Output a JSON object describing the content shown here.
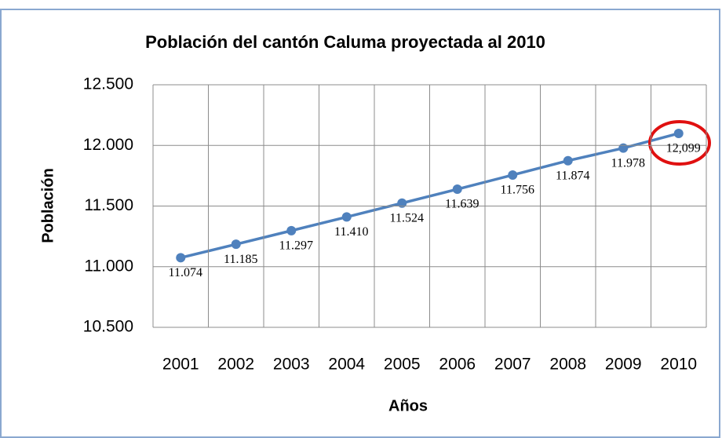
{
  "chart_data": {
    "type": "line",
    "title": "Población del cantón Caluma proyectada al 2010",
    "x_label": "Años",
    "y_label": "Población",
    "categories": [
      "2001",
      "2002",
      "2003",
      "2004",
      "2005",
      "2006",
      "2007",
      "2008",
      "2009",
      "2010"
    ],
    "series": [
      {
        "name": "Población",
        "color": "#4f81bd",
        "values": [
          11074,
          11185,
          11297,
          11410,
          11524,
          11639,
          11756,
          11874,
          11978,
          12099
        ],
        "value_labels": [
          "11.074",
          "11.185",
          "11.297",
          "11.410",
          "11.524",
          "11.639",
          "11.756",
          "11.874",
          "11.978",
          "12,099"
        ]
      }
    ],
    "ylim": [
      10500,
      12500
    ],
    "yticks": [
      {
        "value": 10500,
        "label": "10.500"
      },
      {
        "value": 11000,
        "label": "11.000"
      },
      {
        "value": 11500,
        "label": "11.500"
      },
      {
        "value": 12000,
        "label": "12.000"
      },
      {
        "value": 12500,
        "label": "12.500"
      }
    ],
    "grid": true
  }
}
